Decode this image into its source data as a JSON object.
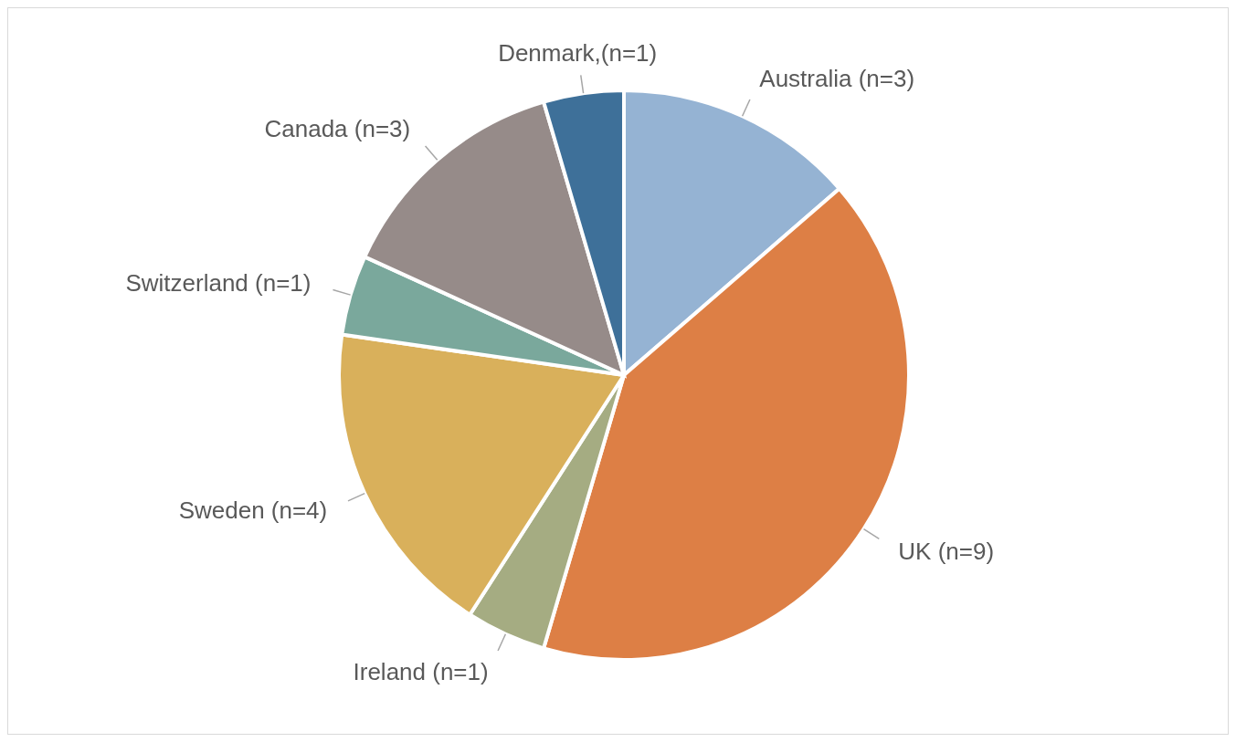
{
  "chart_data": {
    "type": "pie",
    "categories": [
      "Australia (n=3)",
      "UK (n=9)",
      "Ireland (n=1)",
      "Sweden (n=4)",
      "Switzerland (n=1)",
      "Canada (n=3)",
      "Denmark,(n=1)"
    ],
    "values": [
      3,
      9,
      1,
      4,
      1,
      3,
      1
    ],
    "colors": [
      "#95b3d3",
      "#dd7f45",
      "#a5ac82",
      "#d9b05b",
      "#7aa89c",
      "#968b89",
      "#3e7099"
    ],
    "legend": false
  }
}
